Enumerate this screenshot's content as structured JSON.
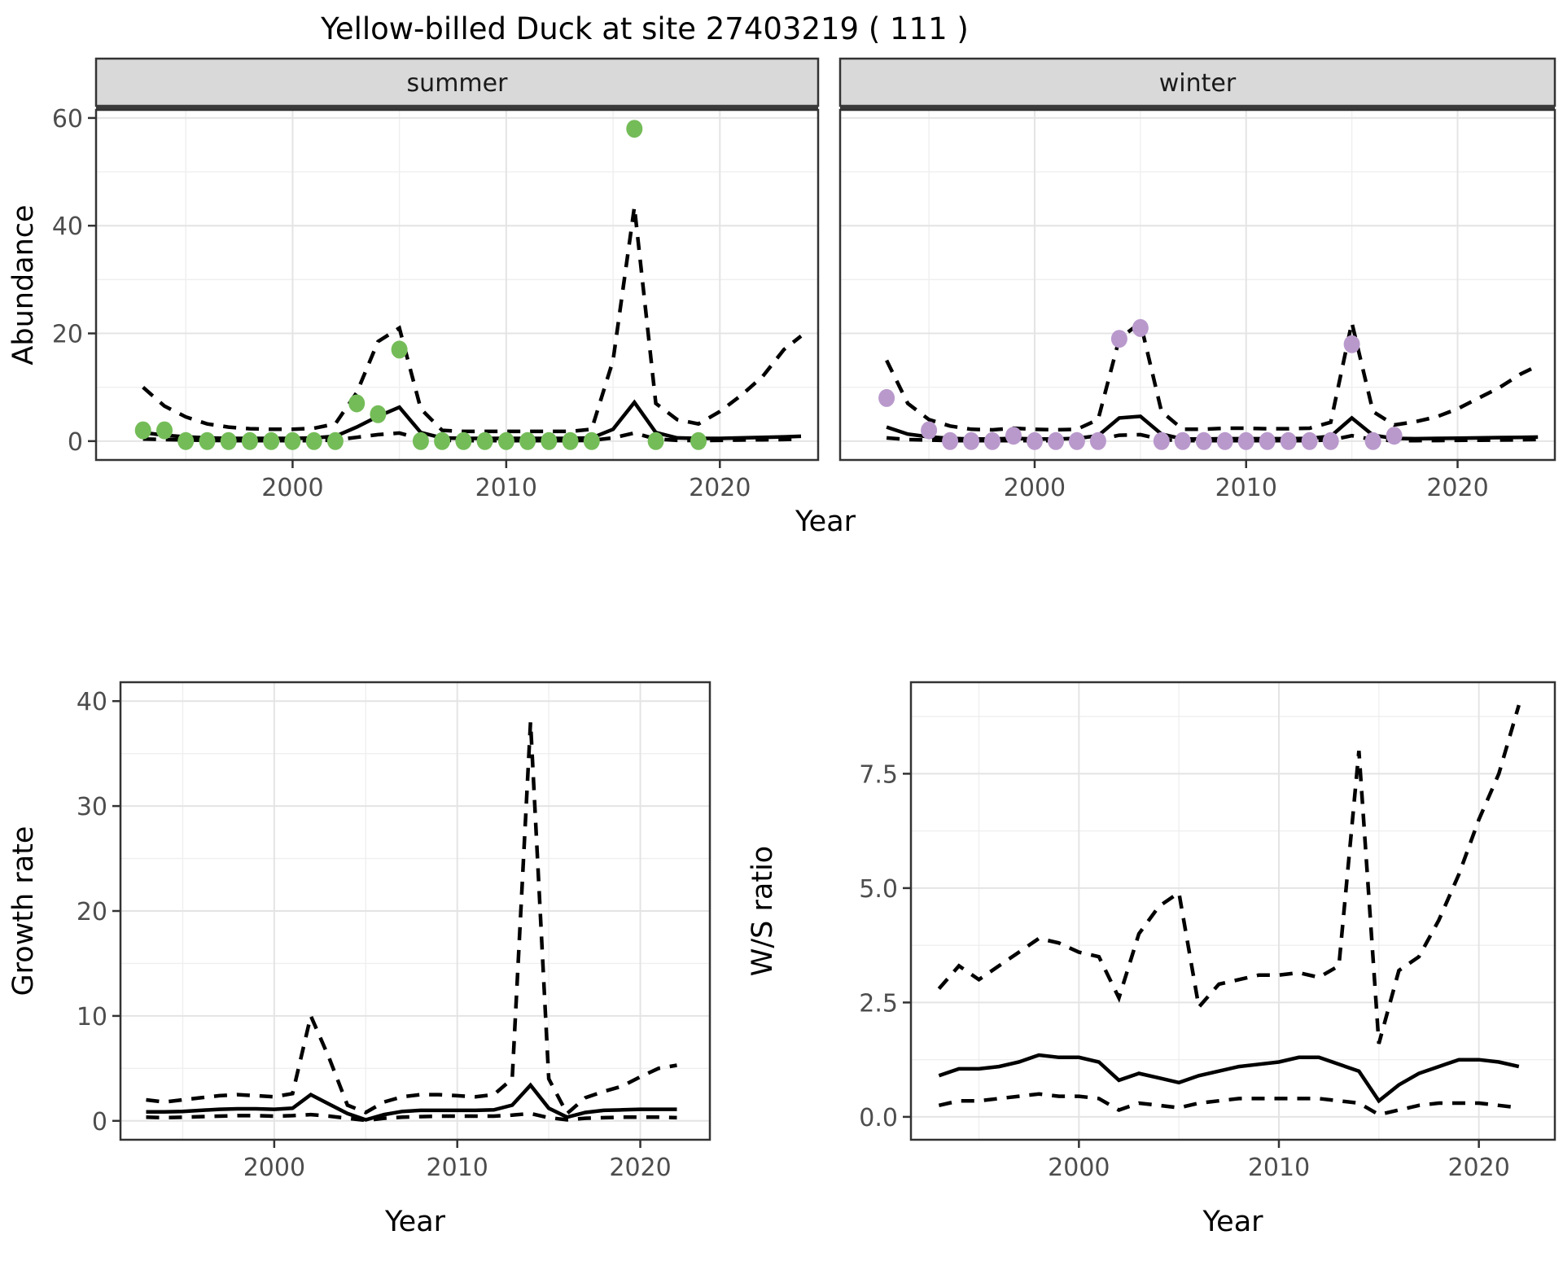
{
  "title": "Yellow-billed Duck at site 27403219 ( 111 )",
  "colors": {
    "summer_point": "#74BC58",
    "winter_point": "#B999CC",
    "line": "#000000",
    "grid_major": "#E4E4E4",
    "grid_minor": "#EFEFEF",
    "strip_bg": "#D9D9D9",
    "strip_underline": "#3A3A3A",
    "panel_border": "#333333",
    "tick_text": "#4D4D4D",
    "axis_title_text": "#000000"
  },
  "chart_data": {
    "type": "line",
    "top_row_shared_xlabel": "Year",
    "top_row_shared_ylabel": "Abundance",
    "panels": [
      {
        "id": "abundance-summer",
        "facet_label": "summer",
        "ylabel": "Abundance",
        "xlabel": null,
        "xlim": [
          1990.8,
          2024.6
        ],
        "ylim": [
          -3.5,
          61.5
        ],
        "xticks": {
          "values": [
            2000,
            2010,
            2020
          ],
          "labels": [
            "2000",
            "2010",
            "2020"
          ]
        },
        "yticks": {
          "values": [
            0,
            20,
            40,
            60
          ],
          "labels": [
            "0",
            "20",
            "40",
            "60"
          ]
        },
        "fit_years": [
          1993,
          1994,
          1995,
          1996,
          1997,
          1998,
          1999,
          2000,
          2001,
          2002,
          2003,
          2004,
          2005,
          2006,
          2007,
          2008,
          2009,
          2010,
          2011,
          2012,
          2013,
          2014,
          2015,
          2016,
          2017,
          2018,
          2019,
          2020,
          2021,
          2022,
          2023,
          2023.8
        ],
        "upper_ci": [
          10,
          6.5,
          4.5,
          3.2,
          2.6,
          2.3,
          2.2,
          2.2,
          2.4,
          3.2,
          9,
          18.5,
          21,
          6,
          2,
          1.8,
          1.8,
          1.8,
          1.8,
          1.8,
          1.8,
          2.2,
          15,
          43.5,
          7,
          4,
          3.2,
          5.5,
          8.5,
          12,
          17,
          19.5
        ],
        "median": [
          1.6,
          1.1,
          0.8,
          0.6,
          0.5,
          0.5,
          0.5,
          0.5,
          0.6,
          0.9,
          2.6,
          4.6,
          6.3,
          1.6,
          0.6,
          0.5,
          0.5,
          0.5,
          0.5,
          0.5,
          0.5,
          0.6,
          2.2,
          7.2,
          1.6,
          0.6,
          0.5,
          0.5,
          0.6,
          0.7,
          0.8,
          0.9
        ],
        "lower_ci": [
          0.4,
          0.3,
          0.2,
          0.15,
          0.1,
          0.1,
          0.1,
          0.1,
          0.1,
          0.2,
          0.7,
          1.2,
          1.5,
          0.4,
          0.15,
          0.1,
          0.1,
          0.1,
          0.1,
          0.1,
          0.1,
          0.15,
          0.6,
          1.5,
          0.4,
          0.15,
          0.1,
          0.15,
          0.2,
          0.25,
          0.3,
          0.4
        ],
        "points": {
          "color_key": "summer_point",
          "years": [
            1993,
            1994,
            1995,
            1996,
            1997,
            1998,
            1999,
            2000,
            2001,
            2002,
            2003,
            2004,
            2005,
            2006,
            2007,
            2008,
            2009,
            2010,
            2011,
            2012,
            2013,
            2014,
            2016,
            2017,
            2019
          ],
          "values": [
            2,
            2,
            0,
            0,
            0,
            0,
            0,
            0,
            0,
            0,
            7,
            5,
            17,
            0,
            0,
            0,
            0,
            0,
            0,
            0,
            0,
            0,
            58,
            0,
            0
          ]
        }
      },
      {
        "id": "abundance-winter",
        "facet_label": "winter",
        "ylabel": null,
        "xlabel": null,
        "xlim": [
          1990.8,
          2024.6
        ],
        "ylim": [
          -3.5,
          61.5
        ],
        "xticks": {
          "values": [
            2000,
            2010,
            2020
          ],
          "labels": [
            "2000",
            "2010",
            "2020"
          ]
        },
        "yticks": {
          "values": [
            0,
            20,
            40,
            60
          ],
          "labels": []
        },
        "fit_years": [
          1993,
          1994,
          1995,
          1996,
          1997,
          1998,
          1999,
          2000,
          2001,
          2002,
          2003,
          2004,
          2005,
          2006,
          2007,
          2008,
          2009,
          2010,
          2011,
          2012,
          2013,
          2014,
          2015,
          2016,
          2017,
          2018,
          2019,
          2020,
          2021,
          2022,
          2023,
          2023.8
        ],
        "upper_ci": [
          15,
          7,
          4,
          2.8,
          2.2,
          2.1,
          2.4,
          2.2,
          2.1,
          2.2,
          4,
          19,
          22,
          5.5,
          2.2,
          2.2,
          2.4,
          2.4,
          2.3,
          2.3,
          2.4,
          3.5,
          22,
          5.5,
          3,
          3.6,
          4.5,
          6,
          8,
          10,
          12.5,
          14
        ],
        "median": [
          2.6,
          1.3,
          0.8,
          0.5,
          0.4,
          0.4,
          0.5,
          0.4,
          0.4,
          0.5,
          1.0,
          4.3,
          4.6,
          1.3,
          0.4,
          0.4,
          0.45,
          0.45,
          0.45,
          0.45,
          0.5,
          0.9,
          4.3,
          1.1,
          0.5,
          0.45,
          0.5,
          0.55,
          0.6,
          0.65,
          0.7,
          0.75
        ],
        "lower_ci": [
          0.6,
          0.3,
          0.2,
          0.1,
          0.08,
          0.08,
          0.1,
          0.08,
          0.08,
          0.1,
          0.25,
          1.1,
          1.2,
          0.3,
          0.08,
          0.08,
          0.1,
          0.1,
          0.1,
          0.1,
          0.1,
          0.2,
          1.0,
          0.3,
          0.1,
          0.1,
          0.12,
          0.15,
          0.18,
          0.2,
          0.25,
          0.3
        ],
        "points": {
          "color_key": "winter_point",
          "years": [
            1993,
            1995,
            1996,
            1997,
            1998,
            1999,
            2000,
            2001,
            2002,
            2003,
            2004,
            2005,
            2006,
            2007,
            2008,
            2009,
            2010,
            2011,
            2012,
            2013,
            2014,
            2015,
            2016,
            2017
          ],
          "values": [
            8,
            2,
            0,
            0,
            0,
            1,
            0,
            0,
            0,
            0,
            19,
            21,
            0,
            0,
            0,
            0,
            0,
            0,
            0,
            0,
            0,
            18,
            0,
            1
          ]
        }
      },
      {
        "id": "growth-rate",
        "facet_label": null,
        "ylabel": "Growth rate",
        "xlabel": "Year",
        "xlim": [
          1991.6,
          2023.8
        ],
        "ylim": [
          -1.8,
          41.8
        ],
        "xticks": {
          "values": [
            2000,
            2010,
            2020
          ],
          "labels": [
            "2000",
            "2010",
            "2020"
          ]
        },
        "yticks": {
          "values": [
            0,
            10,
            20,
            30,
            40
          ],
          "labels": [
            "0",
            "10",
            "20",
            "30",
            "40"
          ]
        },
        "fit_years": [
          1993,
          1994,
          1995,
          1996,
          1997,
          1998,
          1999,
          2000,
          2001,
          2002,
          2003,
          2004,
          2005,
          2006,
          2007,
          2008,
          2009,
          2010,
          2011,
          2012,
          2013,
          2014,
          2015,
          2016,
          2017,
          2018,
          2019,
          2020,
          2021,
          2022
        ],
        "upper_ci": [
          2.0,
          1.8,
          2.0,
          2.2,
          2.4,
          2.5,
          2.4,
          2.3,
          2.6,
          10,
          6,
          1.5,
          0.8,
          1.8,
          2.3,
          2.5,
          2.5,
          2.4,
          2.3,
          2.5,
          4,
          38,
          4,
          0.7,
          2.2,
          2.8,
          3.3,
          4.2,
          5.0,
          5.3
        ],
        "median": [
          0.85,
          0.85,
          0.9,
          1.0,
          1.1,
          1.15,
          1.15,
          1.1,
          1.2,
          2.5,
          1.6,
          0.7,
          0.1,
          0.6,
          0.9,
          1.0,
          1.0,
          1.0,
          1.0,
          1.05,
          1.5,
          3.4,
          1.2,
          0.35,
          0.8,
          1.0,
          1.05,
          1.1,
          1.1,
          1.1
        ],
        "lower_ci": [
          0.35,
          0.3,
          0.35,
          0.4,
          0.45,
          0.5,
          0.5,
          0.45,
          0.5,
          0.6,
          0.45,
          0.25,
          0.05,
          0.25,
          0.35,
          0.4,
          0.45,
          0.45,
          0.45,
          0.45,
          0.55,
          0.7,
          0.3,
          0.1,
          0.25,
          0.3,
          0.35,
          0.35,
          0.35,
          0.3
        ],
        "points": null
      },
      {
        "id": "ws-ratio",
        "facet_label": null,
        "ylabel": "W/S ratio",
        "xlabel": "Year",
        "xlim": [
          1991.6,
          2023.8
        ],
        "ylim": [
          -0.5,
          9.5
        ],
        "xticks": {
          "values": [
            2000,
            2010,
            2020
          ],
          "labels": [
            "2000",
            "2010",
            "2020"
          ]
        },
        "yticks": {
          "values": [
            0.0,
            2.5,
            5.0,
            7.5
          ],
          "labels": [
            "0.0",
            "2.5",
            "5.0",
            "7.5"
          ]
        },
        "fit_years": [
          1993,
          1994,
          1995,
          1996,
          1997,
          1998,
          1999,
          2000,
          2001,
          2002,
          2003,
          2004,
          2005,
          2006,
          2007,
          2008,
          2009,
          2010,
          2011,
          2012,
          2013,
          2014,
          2015,
          2016,
          2017,
          2018,
          2019,
          2020,
          2021,
          2022
        ],
        "upper_ci": [
          2.8,
          3.3,
          3.0,
          3.3,
          3.6,
          3.9,
          3.8,
          3.6,
          3.5,
          2.6,
          4.0,
          4.6,
          4.9,
          2.4,
          2.9,
          3.0,
          3.1,
          3.1,
          3.15,
          3.05,
          3.3,
          8.0,
          1.6,
          3.2,
          3.5,
          4.3,
          5.3,
          6.5,
          7.5,
          9.0
        ],
        "median": [
          0.9,
          1.05,
          1.05,
          1.1,
          1.2,
          1.35,
          1.3,
          1.3,
          1.2,
          0.8,
          0.95,
          0.85,
          0.75,
          0.9,
          1.0,
          1.1,
          1.15,
          1.2,
          1.3,
          1.3,
          1.15,
          1.0,
          0.35,
          0.7,
          0.95,
          1.1,
          1.25,
          1.25,
          1.2,
          1.1
        ],
        "lower_ci": [
          0.25,
          0.35,
          0.35,
          0.4,
          0.45,
          0.5,
          0.45,
          0.45,
          0.4,
          0.15,
          0.3,
          0.25,
          0.2,
          0.3,
          0.35,
          0.4,
          0.4,
          0.4,
          0.4,
          0.4,
          0.35,
          0.3,
          0.05,
          0.15,
          0.25,
          0.3,
          0.3,
          0.3,
          0.25,
          0.2
        ],
        "points": null
      }
    ]
  }
}
